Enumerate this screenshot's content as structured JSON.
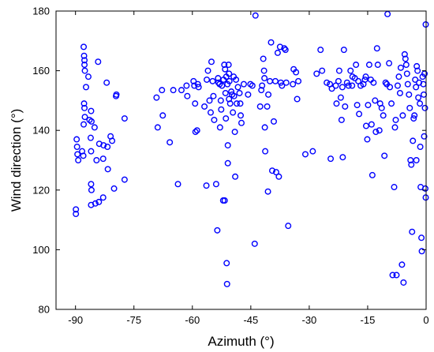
{
  "chart_data": {
    "type": "scatter",
    "title": "",
    "xlabel": "Azimuth (°)",
    "ylabel": "Wind direction (°)",
    "xlim": [
      -95,
      0
    ],
    "ylim": [
      80,
      180
    ],
    "xticks": [
      -90,
      -75,
      -60,
      -45,
      -30,
      -15,
      0
    ],
    "yticks": [
      80,
      100,
      120,
      140,
      160,
      180
    ],
    "grid": false,
    "legend": "none",
    "marker": "open-circle",
    "color": "#0000ff",
    "series": [
      {
        "points": [
          [
            -89.9,
            112
          ],
          [
            -89.9,
            113.5
          ],
          [
            -89.7,
            137
          ],
          [
            -89.6,
            134.5
          ],
          [
            -89.5,
            132
          ],
          [
            -89.3,
            130
          ],
          [
            -88.3,
            133
          ],
          [
            -88.0,
            131.5
          ],
          [
            -87.9,
            142
          ],
          [
            -87.9,
            168
          ],
          [
            -87.8,
            165
          ],
          [
            -87.7,
            163.5
          ],
          [
            -87.7,
            162
          ],
          [
            -87.6,
            160
          ],
          [
            -87.8,
            149
          ],
          [
            -87.7,
            147.5
          ],
          [
            -87.6,
            144.5
          ],
          [
            -87.3,
            154.5
          ],
          [
            -86.7,
            158
          ],
          [
            -86.4,
            143.5
          ],
          [
            -86.0,
            146.5
          ],
          [
            -85.9,
            143
          ],
          [
            -86.1,
            137.5
          ],
          [
            -86.0,
            133
          ],
          [
            -86.0,
            122
          ],
          [
            -85.9,
            120
          ],
          [
            -86.0,
            115
          ],
          [
            -85.1,
            141
          ],
          [
            -84.9,
            115.5
          ],
          [
            -84.6,
            130
          ],
          [
            -84.2,
            163
          ],
          [
            -83.9,
            135.5
          ],
          [
            -84.0,
            116
          ],
          [
            -82.8,
            135
          ],
          [
            -82.9,
            130.5
          ],
          [
            -82.9,
            117.5
          ],
          [
            -82.0,
            156
          ],
          [
            -81.8,
            134.5
          ],
          [
            -81.7,
            127
          ],
          [
            -81.0,
            138
          ],
          [
            -80.6,
            136.5
          ],
          [
            -80.1,
            120.5
          ],
          [
            -79.5,
            152
          ],
          [
            -79.6,
            151.5
          ],
          [
            -77.4,
            144
          ],
          [
            -77.4,
            123.5
          ],
          [
            -69.2,
            151
          ],
          [
            -68.9,
            141
          ],
          [
            -67.8,
            153.5
          ],
          [
            -67.6,
            145
          ],
          [
            -65.8,
            136
          ],
          [
            -64.9,
            153.5
          ],
          [
            -63.7,
            122
          ],
          [
            -62.8,
            153.5
          ],
          [
            -61.5,
            155
          ],
          [
            -61.3,
            151.5
          ],
          [
            -59.7,
            156.5
          ],
          [
            -59.5,
            155
          ],
          [
            -59.3,
            149
          ],
          [
            -59.2,
            139.5
          ],
          [
            -58.8,
            140
          ],
          [
            -58.6,
            155.5
          ],
          [
            -58.4,
            154.5
          ],
          [
            -56.9,
            148
          ],
          [
            -56.4,
            121.5
          ],
          [
            -56.3,
            157
          ],
          [
            -56.0,
            160
          ],
          [
            -55.6,
            150
          ],
          [
            -55.3,
            146
          ],
          [
            -55.1,
            163
          ],
          [
            -54.8,
            156.5
          ],
          [
            -54.6,
            151.5
          ],
          [
            -54.4,
            143.5
          ],
          [
            -53.9,
            122
          ],
          [
            -53.6,
            106.5
          ],
          [
            -53.4,
            157.5
          ],
          [
            -53.3,
            156
          ],
          [
            -53.0,
            155.5
          ],
          [
            -52.9,
            141
          ],
          [
            -52.7,
            150
          ],
          [
            -52.6,
            147
          ],
          [
            -52.4,
            155
          ],
          [
            -52.1,
            116.5
          ],
          [
            -52.0,
            157
          ],
          [
            -51.8,
            162
          ],
          [
            -51.7,
            116.5
          ],
          [
            -51.6,
            160.5
          ],
          [
            -51.5,
            152.5
          ],
          [
            -51.4,
            144
          ],
          [
            -51.3,
            158
          ],
          [
            -51.2,
            95.5
          ],
          [
            -51.1,
            88.5
          ],
          [
            -51.0,
            155.5
          ],
          [
            -50.9,
            135
          ],
          [
            -50.9,
            129
          ],
          [
            -50.7,
            162
          ],
          [
            -50.6,
            159
          ],
          [
            -50.6,
            150.5
          ],
          [
            -50.5,
            156.5
          ],
          [
            -50.3,
            149
          ],
          [
            -50.0,
            153
          ],
          [
            -49.8,
            152
          ],
          [
            -49.6,
            146
          ],
          [
            -49.4,
            158
          ],
          [
            -49.3,
            151.5
          ],
          [
            -49.1,
            139.5
          ],
          [
            -49.0,
            124.5
          ],
          [
            -48.8,
            157
          ],
          [
            -48.6,
            149
          ],
          [
            -48.3,
            154.5
          ],
          [
            -47.9,
            152.5
          ],
          [
            -47.7,
            149
          ],
          [
            -47.6,
            145
          ],
          [
            -47.4,
            142.5
          ],
          [
            -46.8,
            155.5
          ],
          [
            -45.7,
            152
          ],
          [
            -45.1,
            155.5
          ],
          [
            -44.6,
            155
          ],
          [
            -44.0,
            102
          ],
          [
            -43.8,
            178.5
          ],
          [
            -42.6,
            148
          ],
          [
            -42.3,
            153.5
          ],
          [
            -42.1,
            155
          ],
          [
            -41.8,
            164
          ],
          [
            -41.6,
            160
          ],
          [
            -41.5,
            157.5
          ],
          [
            -41.4,
            141
          ],
          [
            -41.3,
            133
          ],
          [
            -40.8,
            148
          ],
          [
            -40.6,
            119.5
          ],
          [
            -40.5,
            152
          ],
          [
            -40.1,
            156.5
          ],
          [
            -39.8,
            169.5
          ],
          [
            -39.5,
            126.5
          ],
          [
            -39.1,
            143
          ],
          [
            -38.7,
            156.5
          ],
          [
            -38.5,
            126
          ],
          [
            -38.1,
            166
          ],
          [
            -37.8,
            124.5
          ],
          [
            -37.5,
            168
          ],
          [
            -37.3,
            156
          ],
          [
            -37.0,
            155
          ],
          [
            -36.4,
            167.5
          ],
          [
            -36.1,
            167
          ],
          [
            -35.9,
            156
          ],
          [
            -35.4,
            108
          ],
          [
            -34.2,
            155.5
          ],
          [
            -34.0,
            160.5
          ],
          [
            -33.4,
            159.5
          ],
          [
            -33.1,
            150.5
          ],
          [
            -32.8,
            156.5
          ],
          [
            -31.0,
            132
          ],
          [
            -29.1,
            133
          ],
          [
            -28.1,
            159
          ],
          [
            -27.1,
            167
          ],
          [
            -26.7,
            160
          ],
          [
            -25.5,
            156
          ],
          [
            -24.7,
            155.5
          ],
          [
            -24.5,
            130.5
          ],
          [
            -24.2,
            154
          ],
          [
            -23.2,
            155
          ],
          [
            -23.0,
            149
          ],
          [
            -22.5,
            156.5
          ],
          [
            -22.3,
            160
          ],
          [
            -21.9,
            151
          ],
          [
            -21.7,
            143.5
          ],
          [
            -21.5,
            154.5
          ],
          [
            -21.4,
            131
          ],
          [
            -21.1,
            167
          ],
          [
            -20.8,
            148
          ],
          [
            -20.3,
            156
          ],
          [
            -19.9,
            155
          ],
          [
            -19.4,
            160
          ],
          [
            -19.0,
            155
          ],
          [
            -18.9,
            158
          ],
          [
            -18.3,
            157.5
          ],
          [
            -18.0,
            162
          ],
          [
            -17.7,
            148.5
          ],
          [
            -17.4,
            156.5
          ],
          [
            -17.2,
            145.5
          ],
          [
            -16.8,
            155
          ],
          [
            -16.1,
            155.5
          ],
          [
            -15.7,
            157
          ],
          [
            -15.5,
            158
          ],
          [
            -15.4,
            141.5
          ],
          [
            -15.1,
            137
          ],
          [
            -14.9,
            148.5
          ],
          [
            -14.6,
            162
          ],
          [
            -14.2,
            157
          ],
          [
            -14.0,
            142
          ],
          [
            -13.8,
            125
          ],
          [
            -13.5,
            156
          ],
          [
            -13.1,
            150
          ],
          [
            -12.9,
            139.5
          ],
          [
            -12.6,
            167.5
          ],
          [
            -12.4,
            162
          ],
          [
            -12.0,
            140
          ],
          [
            -11.8,
            149
          ],
          [
            -11.4,
            147.5
          ],
          [
            -11.0,
            145
          ],
          [
            -10.7,
            131.5
          ],
          [
            -10.4,
            156
          ],
          [
            -10.1,
            155.5
          ],
          [
            -9.9,
            179
          ],
          [
            -9.5,
            162.5
          ],
          [
            -9.3,
            154.5
          ],
          [
            -8.9,
            149
          ],
          [
            -8.6,
            91.5
          ],
          [
            -8.2,
            121
          ],
          [
            -8.0,
            141
          ],
          [
            -7.8,
            143.5
          ],
          [
            -7.6,
            91.5
          ],
          [
            -7.3,
            155
          ],
          [
            -7.0,
            158
          ],
          [
            -6.7,
            152.5
          ],
          [
            -6.5,
            161
          ],
          [
            -6.2,
            95
          ],
          [
            -6.0,
            145
          ],
          [
            -5.8,
            89
          ],
          [
            -5.5,
            165.5
          ],
          [
            -5.3,
            164
          ],
          [
            -5.1,
            162
          ],
          [
            -4.9,
            159
          ],
          [
            -4.7,
            155.5
          ],
          [
            -4.4,
            152
          ],
          [
            -4.2,
            147.5
          ],
          [
            -4.0,
            130
          ],
          [
            -3.8,
            128.5
          ],
          [
            -3.6,
            106
          ],
          [
            -3.4,
            136.5
          ],
          [
            -3.2,
            144
          ],
          [
            -3.0,
            145
          ],
          [
            -2.8,
            157
          ],
          [
            -2.6,
            154.5
          ],
          [
            -2.4,
            161.5
          ],
          [
            -2.2,
            160
          ],
          [
            -2.0,
            151
          ],
          [
            -1.8,
            156
          ],
          [
            -1.6,
            149
          ],
          [
            -1.5,
            134.5
          ],
          [
            -1.4,
            121
          ],
          [
            -1.2,
            104
          ],
          [
            -1.1,
            99.5
          ],
          [
            -0.9,
            158
          ],
          [
            -0.7,
            155.5
          ],
          [
            -0.6,
            152
          ],
          [
            -0.4,
            159
          ],
          [
            -0.3,
            147.5
          ],
          [
            -0.2,
            120.5
          ],
          [
            -0.1,
            117.5
          ],
          [
            -0.1,
            175.5
          ],
          [
            -0.5,
            138
          ],
          [
            -2.5,
            130
          ]
        ]
      }
    ]
  }
}
